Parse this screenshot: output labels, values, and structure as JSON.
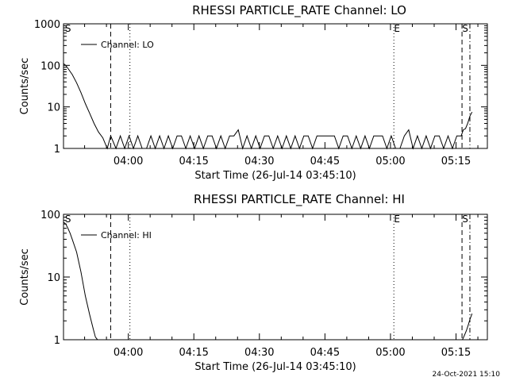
{
  "figure": {
    "footer_timestamp": "24-Oct-2021 15:10",
    "foreground": "#000000",
    "background": "#ffffff"
  },
  "chart_data": [
    {
      "type": "line",
      "title": "RHESSI PARTICLE_RATE Channel: LO",
      "xlabel": "Start Time (26-Jul-14 03:45:10)",
      "ylabel": "Counts/sec",
      "y_scale": "log",
      "ylim": [
        1,
        1000
      ],
      "xlim_minutes": [
        0,
        97
      ],
      "x_tick_labels": [
        "04:00",
        "04:15",
        "04:30",
        "04:45",
        "05:00",
        "05:15"
      ],
      "x_tick_minutes": [
        14.83,
        29.83,
        44.83,
        59.83,
        74.83,
        89.83
      ],
      "y_tick_labels": [
        "1",
        "10",
        "100",
        "1000"
      ],
      "y_tick_values": [
        1,
        10,
        100,
        1000
      ],
      "grid": false,
      "legend": {
        "position": "top-left",
        "entries": [
          {
            "label": "Channel: LO",
            "style": "solid"
          }
        ]
      },
      "markers": [
        {
          "label": "S",
          "minute": 0.3,
          "style": "none"
        },
        {
          "label": "",
          "minute": 10.8,
          "style": "dashed"
        },
        {
          "label": "",
          "minute": 15.2,
          "style": "dotted"
        },
        {
          "label": "E",
          "minute": 75.6,
          "style": "dotted"
        },
        {
          "label": "S",
          "minute": 91.2,
          "style": "dashed"
        },
        {
          "label": "",
          "minute": 93.0,
          "style": "dashdot"
        }
      ],
      "series": [
        {
          "name": "Channel: LO",
          "x": [
            0,
            0.5,
            1,
            2,
            3,
            4,
            5,
            6,
            7,
            8,
            9,
            10,
            10.8,
            12,
            13,
            14,
            15,
            16,
            17,
            18,
            19,
            20,
            21,
            22,
            23,
            24,
            25,
            26,
            27,
            28,
            29,
            30,
            31,
            32,
            33,
            34,
            35,
            36,
            37,
            38,
            39,
            40,
            41,
            42,
            43,
            44,
            45,
            46,
            47,
            48,
            49,
            50,
            51,
            52,
            53,
            54,
            55,
            56,
            57,
            58,
            59,
            60,
            61,
            62,
            63,
            64,
            65,
            66,
            67,
            68,
            69,
            70,
            71,
            72,
            73,
            74,
            75,
            76,
            77,
            78,
            79,
            80,
            81,
            82,
            83,
            84,
            85,
            86,
            87,
            88,
            89,
            90,
            91,
            91.5,
            92,
            92.5,
            93,
            93.5
          ],
          "y": [
            110,
            100,
            85,
            60,
            38,
            22,
            12,
            7,
            4,
            2.5,
            1.8,
            1,
            2,
            1,
            2,
            1,
            2,
            1,
            2,
            1,
            1,
            2,
            1,
            2,
            1,
            2,
            1,
            2,
            2,
            1,
            2,
            1,
            2,
            1,
            2,
            2,
            1,
            2,
            1,
            2,
            2,
            2.8,
            1,
            2,
            1,
            2,
            1,
            2,
            2,
            1,
            2,
            1,
            2,
            1,
            2,
            1,
            2,
            2,
            1,
            2,
            2,
            2,
            2,
            2,
            1,
            2,
            2,
            1,
            2,
            1,
            2,
            1,
            2,
            2,
            2,
            1,
            2,
            1,
            1,
            2,
            2.8,
            1,
            2,
            1,
            2,
            1,
            2,
            2,
            1,
            2,
            1,
            2,
            2,
            2.8,
            3,
            4,
            6,
            7.5
          ]
        }
      ]
    },
    {
      "type": "line",
      "title": "RHESSI PARTICLE_RATE Channel: HI",
      "xlabel": "Start Time (26-Jul-14 03:45:10)",
      "ylabel": "Counts/sec",
      "y_scale": "log",
      "ylim": [
        1,
        100
      ],
      "xlim_minutes": [
        0,
        97
      ],
      "x_tick_labels": [
        "04:00",
        "04:15",
        "04:30",
        "04:45",
        "05:00",
        "05:15"
      ],
      "x_tick_minutes": [
        14.83,
        29.83,
        44.83,
        59.83,
        74.83,
        89.83
      ],
      "y_tick_labels": [
        "1",
        "10",
        "100"
      ],
      "y_tick_values": [
        1,
        10,
        100
      ],
      "grid": false,
      "legend": {
        "position": "top-left",
        "entries": [
          {
            "label": "Channel: HI",
            "style": "solid"
          }
        ]
      },
      "markers": [
        {
          "label": "S",
          "minute": 0.3,
          "style": "none"
        },
        {
          "label": "",
          "minute": 10.8,
          "style": "dashed"
        },
        {
          "label": "",
          "minute": 15.2,
          "style": "dotted"
        },
        {
          "label": "E",
          "minute": 75.6,
          "style": "dotted"
        },
        {
          "label": "S",
          "minute": 91.2,
          "style": "dashed"
        },
        {
          "label": "",
          "minute": 93.0,
          "style": "dashdot"
        }
      ],
      "series": [
        {
          "name": "Channel: HI",
          "x": [
            0,
            0.5,
            1,
            1.5,
            2,
            3,
            4,
            5,
            6,
            6.8,
            7.3,
            7.8
          ],
          "y": [
            75,
            70,
            60,
            50,
            40,
            25,
            12,
            5,
            2.5,
            1.5,
            1.1,
            1
          ]
        },
        {
          "name": "Channel: HI",
          "x": [
            91.3,
            91.7,
            92.2,
            92.6,
            93.0,
            93.5
          ],
          "y": [
            1,
            1.15,
            1.4,
            1.7,
            2.1,
            2.6
          ]
        }
      ]
    }
  ]
}
